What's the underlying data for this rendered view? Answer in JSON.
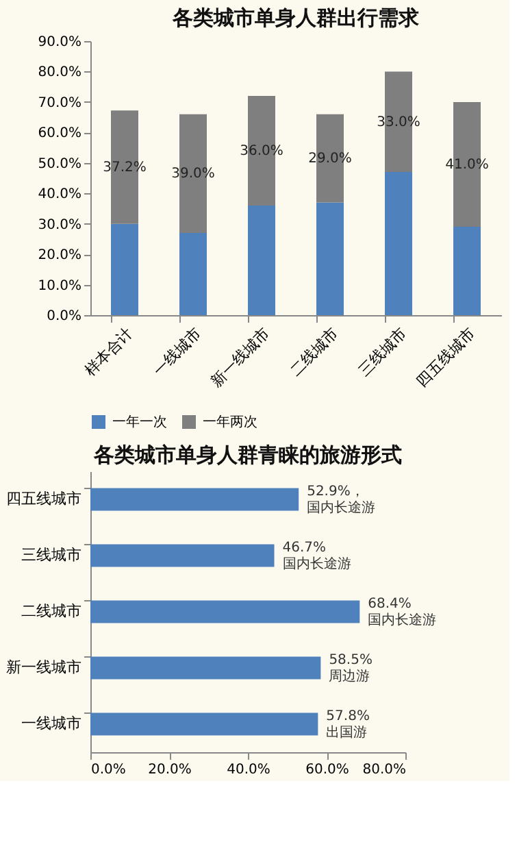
{
  "chart_data": [
    {
      "type": "bar",
      "title": "各类城市单身人群出行需求",
      "stacked": true,
      "categories": [
        "样本合计",
        "一线城市",
        "新一线城市",
        "二线城市",
        "三线城市",
        "四五线城市"
      ],
      "series": [
        {
          "name": "一年一次",
          "color": "#4f81bd",
          "values": [
            30.0,
            27.0,
            36.0,
            37.0,
            47.0,
            29.0
          ]
        },
        {
          "name": "一年两次",
          "color": "#7f7f7f",
          "values": [
            37.2,
            39.0,
            36.0,
            29.0,
            33.0,
            41.0
          ],
          "value_labels": [
            "37.2%",
            "39.0%",
            "36.0%",
            "29.0%",
            "33.0%",
            "41.0%"
          ]
        }
      ],
      "ylim": [
        0,
        90
      ],
      "yticks": [
        {
          "value": 0,
          "label": "0.0%"
        },
        {
          "value": 10,
          "label": "10.0%"
        },
        {
          "value": 20,
          "label": "20.0%"
        },
        {
          "value": 30,
          "label": "30.0%"
        },
        {
          "value": 40,
          "label": "40.0%"
        },
        {
          "value": 50,
          "label": "50.0%"
        },
        {
          "value": 60,
          "label": "60.0%"
        },
        {
          "value": 70,
          "label": "70.0%"
        },
        {
          "value": 80,
          "label": "80.0%"
        },
        {
          "value": 90,
          "label": "90.0%"
        }
      ],
      "legend": "bottom",
      "grid": false
    },
    {
      "type": "bar",
      "title": "各类城市单身人群青睐的旅游形式",
      "orientation": "horizontal",
      "categories": [
        "四五线城市",
        "三线城市",
        "二线城市",
        "新一线城市",
        "一线城市"
      ],
      "series": [
        {
          "color": "#4f81bd",
          "values": [
            52.9,
            46.7,
            68.4,
            58.5,
            57.8
          ],
          "value_labels": [
            "52.9%，国内长途游",
            "46.7%国内长途游",
            "68.4%国内长途游",
            "58.5%周边游",
            "57.8%出国游"
          ]
        }
      ],
      "xlim": [
        0,
        80
      ],
      "xticks": [
        {
          "value": 0,
          "label": "0.0%"
        },
        {
          "value": 20,
          "label": "20.0%"
        },
        {
          "value": 40,
          "label": "40.0%"
        },
        {
          "value": 60,
          "label": "60.0%"
        },
        {
          "value": 80,
          "label": "80.0%"
        }
      ],
      "legend": false,
      "grid": false
    }
  ]
}
